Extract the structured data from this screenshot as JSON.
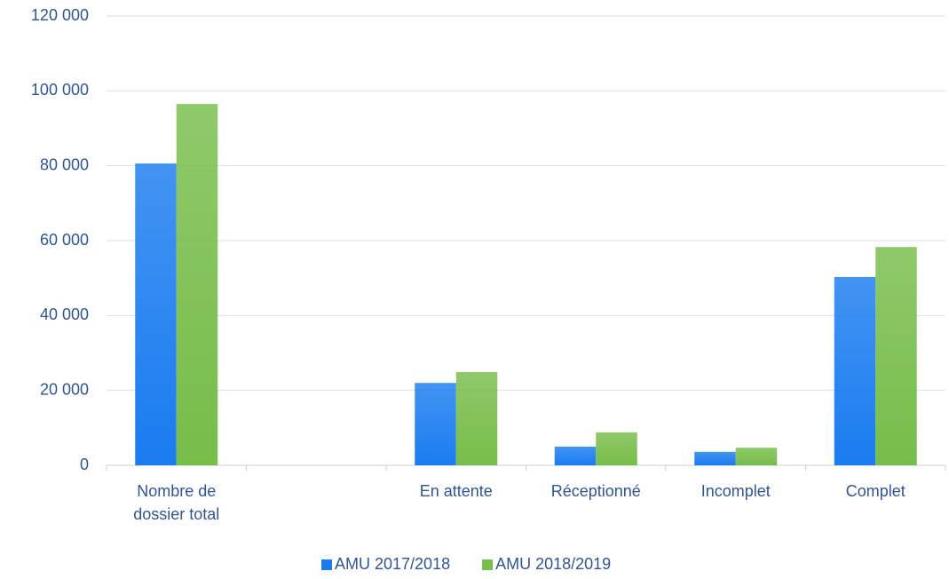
{
  "chart_data": {
    "type": "bar",
    "categories": [
      "Nombre de dossier total",
      null,
      "En attente",
      "Réceptionné",
      "Incomplet",
      "Complet"
    ],
    "series": [
      {
        "name": "AMU 2017/2018",
        "color": "#1a7cf0",
        "values": [
          80600,
          null,
          22000,
          5000,
          3600,
          50300
        ]
      },
      {
        "name": "AMU 2018/2019",
        "color": "#77bd4a",
        "values": [
          96500,
          null,
          24900,
          8800,
          4700,
          58300
        ]
      }
    ],
    "ylim": [
      0,
      120000
    ],
    "yticks": [
      0,
      {
        "value": 20000,
        "label": "20 000"
      },
      {
        "value": 40000,
        "label": "40 000"
      },
      {
        "value": 60000,
        "label": "60 000"
      },
      {
        "value": 80000,
        "label": "80 000"
      },
      {
        "value": 100000,
        "label": "100 000"
      },
      {
        "value": 120000,
        "label": "120 000"
      }
    ],
    "grid": true,
    "legend": "bottom"
  }
}
